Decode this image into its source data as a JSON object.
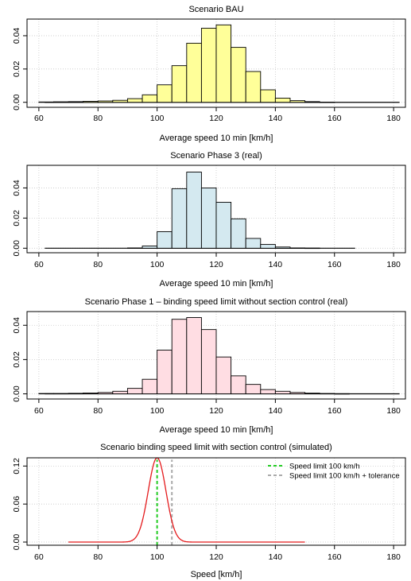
{
  "chart_data": [
    {
      "type": "bar",
      "subtype": "histogram",
      "title": "Scenario BAU",
      "xlabel": "Average speed 10 min [km/h]",
      "ylabel": "",
      "xlim": [
        56,
        184
      ],
      "ylim": [
        -0.003,
        0.05
      ],
      "xticks": [
        "60",
        "80",
        "100",
        "120",
        "140",
        "160",
        "180"
      ],
      "yticks": [
        "0.00",
        "0.02",
        "0.04"
      ],
      "grid": true,
      "bin_width": 5,
      "bins_start": [
        60,
        65,
        70,
        75,
        80,
        85,
        90,
        95,
        100,
        105,
        110,
        115,
        120,
        125,
        130,
        135,
        140,
        145,
        150,
        155,
        160,
        165,
        170,
        175,
        180
      ],
      "values": [
        0.0002,
        0.0003,
        0.0004,
        0.0006,
        0.0008,
        0.0012,
        0.0022,
        0.0045,
        0.0105,
        0.022,
        0.0355,
        0.0445,
        0.0465,
        0.033,
        0.0185,
        0.0075,
        0.0025,
        0.001,
        0.0004,
        0.0001,
        0.0,
        0.0,
        0.0,
        0.0,
        0.0
      ],
      "baseline": [
        62,
        182
      ],
      "color": "#ffff99"
    },
    {
      "type": "bar",
      "subtype": "histogram",
      "title": "Scenario Phase 3 (real)",
      "xlabel": "Average speed 10 min [km/h]",
      "ylabel": "",
      "xlim": [
        56,
        184
      ],
      "ylim": [
        -0.003,
        0.055
      ],
      "xticks": [
        "60",
        "80",
        "100",
        "120",
        "140",
        "160",
        "180"
      ],
      "yticks": [
        "0.00",
        "0.02",
        "0.04"
      ],
      "grid": true,
      "bin_width": 5,
      "bins_start": [
        60,
        65,
        70,
        75,
        80,
        85,
        90,
        95,
        100,
        105,
        110,
        115,
        120,
        125,
        130,
        135,
        140,
        145,
        150,
        155,
        160,
        165
      ],
      "values": [
        0.0,
        0.0,
        0.0,
        0.0,
        0.0,
        0.0,
        0.0002,
        0.0015,
        0.011,
        0.0395,
        0.0505,
        0.04,
        0.0305,
        0.0195,
        0.0065,
        0.0025,
        0.0008,
        0.0002,
        0.0001,
        0.0,
        0.0,
        0.0
      ],
      "baseline": [
        62,
        167
      ],
      "color": "#d4e9f0"
    },
    {
      "type": "bar",
      "subtype": "histogram",
      "title": "Scenario Phase 1 – binding speed limit without section control (real)",
      "xlabel": "Average speed 10 min [km/h]",
      "ylabel": "",
      "xlim": [
        56,
        184
      ],
      "ylim": [
        -0.003,
        0.048
      ],
      "xticks": [
        "60",
        "80",
        "100",
        "120",
        "140",
        "160",
        "180"
      ],
      "yticks": [
        "0.00",
        "0.02",
        "0.04"
      ],
      "grid": true,
      "bin_width": 5,
      "bins_start": [
        60,
        65,
        70,
        75,
        80,
        85,
        90,
        95,
        100,
        105,
        110,
        115,
        120,
        125,
        130,
        135,
        140,
        145,
        150,
        155,
        160,
        165,
        170,
        175,
        180
      ],
      "values": [
        0.0002,
        0.0002,
        0.0003,
        0.0005,
        0.0008,
        0.0015,
        0.0032,
        0.0085,
        0.0255,
        0.0435,
        0.0445,
        0.0375,
        0.0215,
        0.0105,
        0.0055,
        0.0025,
        0.0015,
        0.0008,
        0.0004,
        0.0002,
        0.0001,
        0.0,
        0.0,
        0.0,
        0.0
      ],
      "baseline": [
        62,
        182
      ],
      "color": "#ffdde3"
    },
    {
      "type": "line",
      "title": "Scenario binding speed limit with section control (simulated)",
      "xlabel": "Speed [km/h]",
      "ylabel": "",
      "xlim": [
        56,
        184
      ],
      "ylim": [
        -0.005,
        0.133
      ],
      "xticks": [
        "60",
        "80",
        "100",
        "120",
        "140",
        "160",
        "180"
      ],
      "yticks": [
        "0.00",
        "0.06",
        "0.12"
      ],
      "grid": true,
      "series": [
        {
          "mean": 100,
          "sd": 3,
          "x_range": [
            70,
            150
          ],
          "color": "#e41a1c"
        }
      ],
      "vlines": [
        {
          "x": 100,
          "color": "#22cc22",
          "dash": "4,3",
          "label": "Speed limit 100 km/h"
        },
        {
          "x": 105,
          "color": "#aaaaaa",
          "dash": "4,3",
          "label": "Speed limit 100 km/h + tolerance"
        }
      ],
      "legend_position": "top-right"
    }
  ]
}
